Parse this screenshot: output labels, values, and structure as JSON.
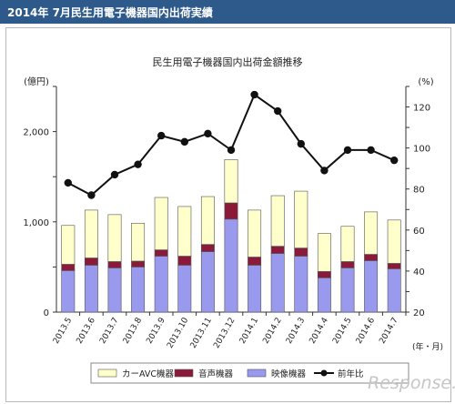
{
  "header": {
    "title": "2014年 7月民生用電子機器国内出荷実績"
  },
  "chart_data": {
    "type": "bar",
    "title": "民生用電子機器国内出荷金額推移",
    "ylabel_left": "(億円)",
    "ylabel_right": "(%)",
    "xlabel": "(年・月)",
    "categories": [
      "2013.5",
      "2013.6",
      "2013.7",
      "2013.8",
      "2013.9",
      "2013.10",
      "2013.11",
      "2013.12",
      "2014.1",
      "2014.2",
      "2014.3",
      "2014.4",
      "2014.5",
      "2014.6",
      "2014.7"
    ],
    "ylim_left": [
      0,
      2500
    ],
    "yticks_left": [
      0,
      1000,
      2000
    ],
    "ytick_labels_left": [
      "0",
      "1,000",
      "2,000"
    ],
    "ylim_right": [
      20,
      130
    ],
    "yticks_right": [
      20,
      40,
      60,
      80,
      100,
      120
    ],
    "series": [
      {
        "name": "映像機器",
        "kind": "bar",
        "color": "#9999ee",
        "values": [
          460,
          520,
          490,
          500,
          620,
          520,
          670,
          1030,
          520,
          650,
          620,
          380,
          490,
          570,
          480
        ]
      },
      {
        "name": "音声機器",
        "kind": "bar",
        "color": "#8b1a3a",
        "values": [
          70,
          80,
          70,
          65,
          70,
          100,
          80,
          180,
          90,
          80,
          90,
          70,
          70,
          70,
          60
        ]
      },
      {
        "name": "カーAVC機器",
        "kind": "bar",
        "color": "#ffffcc",
        "values": [
          430,
          530,
          520,
          420,
          580,
          550,
          530,
          480,
          520,
          560,
          630,
          420,
          390,
          470,
          480
        ]
      },
      {
        "name": "前年比",
        "kind": "line",
        "axis": "right",
        "color": "#111111",
        "values": [
          83,
          77,
          87,
          92,
          106,
          103,
          107,
          99,
          126,
          118,
          102,
          89,
          99,
          99,
          94
        ]
      }
    ],
    "legend": [
      "カーAVC機器",
      "音声機器",
      "映像機器",
      "前年比"
    ],
    "legend_position": "bottom",
    "grid": false
  },
  "watermark": {
    "text": "Response."
  }
}
